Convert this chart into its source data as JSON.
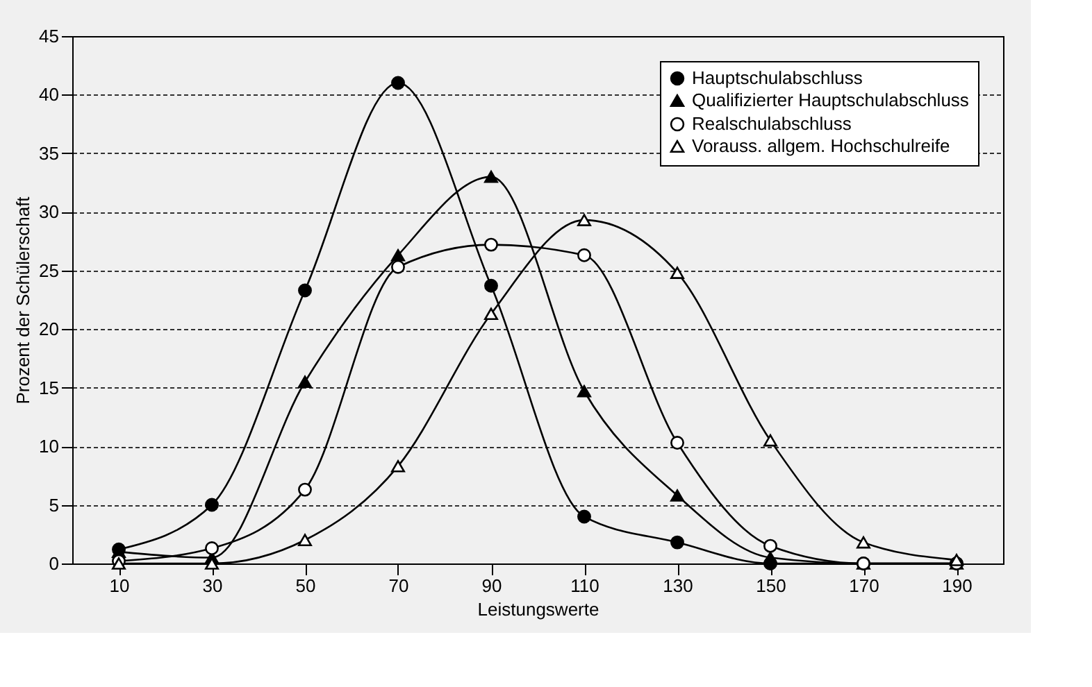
{
  "chart_data": {
    "type": "line",
    "xlabel": "Leistungswerte",
    "ylabel": "Prozent der Schülerschaft",
    "x": [
      10,
      30,
      50,
      70,
      90,
      110,
      130,
      150,
      170,
      190
    ],
    "xlim": [
      0,
      200
    ],
    "xticks": [
      10,
      30,
      50,
      70,
      90,
      110,
      130,
      150,
      170,
      190
    ],
    "ylim": [
      0,
      45
    ],
    "yticks": [
      0,
      5,
      10,
      15,
      20,
      25,
      30,
      35,
      40,
      45
    ],
    "grid": "y",
    "legend": "top right",
    "series": [
      {
        "name": "Hauptschulabschluss",
        "color": "#000000",
        "marker": "circle",
        "values": [
          1.2,
          5,
          23.3,
          41,
          23.7,
          4,
          1.8,
          0,
          0,
          0
        ]
      },
      {
        "name": "Qualifizierter Hauptschulabschluss",
        "color": "#000000",
        "marker": "triangle",
        "values": [
          1,
          0.5,
          15.5,
          26.3,
          33,
          14.7,
          5.8,
          0.5,
          0,
          0
        ]
      },
      {
        "name": "Realschulabschluss",
        "color": "#000000",
        "marker": "circle",
        "values": [
          0.2,
          1.3,
          6.3,
          25.3,
          27.2,
          26.3,
          10.3,
          1.5,
          0,
          0
        ]
      },
      {
        "name": "Vorauss. allgem. Hochschulreife",
        "color": "#000000",
        "marker": "triangle",
        "values": [
          0,
          0,
          2,
          8.3,
          21.3,
          29.3,
          24.8,
          10.5,
          1.8,
          0.3
        ]
      }
    ]
  }
}
